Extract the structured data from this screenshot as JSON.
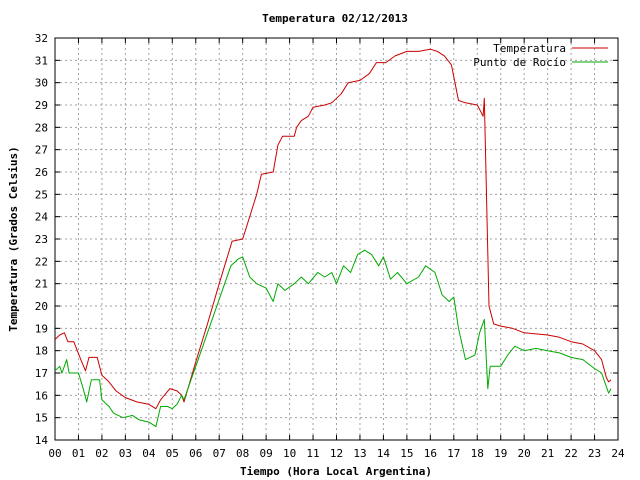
{
  "chart_data": {
    "type": "line",
    "title": "Temperatura 02/12/2013",
    "xlabel": "Tiempo (Hora Local Argentina)",
    "ylabel": "Temperatura (Grados Celsius)",
    "xlim": [
      0,
      24
    ],
    "ylim": [
      14,
      32
    ],
    "grid": true,
    "legend_position": "top-right",
    "x_tick_labels": [
      "00",
      "01",
      "02",
      "03",
      "04",
      "05",
      "06",
      "07",
      "08",
      "09",
      "10",
      "11",
      "12",
      "13",
      "14",
      "15",
      "16",
      "17",
      "18",
      "19",
      "20",
      "21",
      "22",
      "23",
      "24"
    ],
    "y_tick_labels": [
      "14",
      "15",
      "16",
      "17",
      "18",
      "19",
      "20",
      "21",
      "22",
      "23",
      "24",
      "25",
      "26",
      "27",
      "28",
      "29",
      "30",
      "31",
      "32"
    ],
    "series": [
      {
        "name": "Temperatura",
        "color": "#cc0000",
        "points": [
          [
            0.0,
            18.5
          ],
          [
            0.2,
            18.7
          ],
          [
            0.4,
            18.8
          ],
          [
            0.55,
            18.4
          ],
          [
            0.8,
            18.4
          ],
          [
            1.1,
            17.6
          ],
          [
            1.3,
            17.1
          ],
          [
            1.45,
            17.7
          ],
          [
            1.8,
            17.7
          ],
          [
            2.0,
            16.9
          ],
          [
            2.3,
            16.6
          ],
          [
            2.6,
            16.2
          ],
          [
            3.0,
            15.9
          ],
          [
            3.5,
            15.7
          ],
          [
            4.0,
            15.6
          ],
          [
            4.3,
            15.4
          ],
          [
            4.5,
            15.8
          ],
          [
            4.9,
            16.3
          ],
          [
            5.2,
            16.2
          ],
          [
            5.4,
            16.0
          ],
          [
            5.5,
            15.7
          ],
          [
            6.0,
            17.5
          ],
          [
            6.5,
            19.2
          ],
          [
            7.0,
            21.0
          ],
          [
            7.55,
            22.9
          ],
          [
            8.0,
            23.0
          ],
          [
            8.3,
            24.0
          ],
          [
            8.6,
            25.0
          ],
          [
            8.8,
            25.9
          ],
          [
            9.3,
            26.0
          ],
          [
            9.5,
            27.2
          ],
          [
            9.7,
            27.6
          ],
          [
            10.2,
            27.6
          ],
          [
            10.3,
            28.0
          ],
          [
            10.5,
            28.3
          ],
          [
            10.8,
            28.5
          ],
          [
            11.0,
            28.9
          ],
          [
            11.5,
            29.0
          ],
          [
            11.8,
            29.1
          ],
          [
            12.2,
            29.5
          ],
          [
            12.5,
            30.0
          ],
          [
            13.0,
            30.1
          ],
          [
            13.4,
            30.4
          ],
          [
            13.7,
            30.9
          ],
          [
            14.1,
            30.9
          ],
          [
            14.5,
            31.2
          ],
          [
            15.0,
            31.4
          ],
          [
            15.5,
            31.4
          ],
          [
            16.0,
            31.5
          ],
          [
            16.3,
            31.4
          ],
          [
            16.6,
            31.2
          ],
          [
            16.9,
            30.8
          ],
          [
            17.2,
            29.2
          ],
          [
            17.5,
            29.1
          ],
          [
            18.0,
            29.0
          ],
          [
            18.25,
            28.5
          ],
          [
            18.3,
            29.3
          ],
          [
            18.5,
            20.0
          ],
          [
            18.7,
            19.2
          ],
          [
            19.0,
            19.1
          ],
          [
            19.5,
            19.0
          ],
          [
            20.0,
            18.8
          ],
          [
            21.0,
            18.7
          ],
          [
            21.5,
            18.6
          ],
          [
            22.0,
            18.4
          ],
          [
            22.5,
            18.3
          ],
          [
            23.0,
            18.0
          ],
          [
            23.3,
            17.6
          ],
          [
            23.5,
            16.8
          ],
          [
            23.6,
            16.6
          ],
          [
            23.7,
            16.7
          ]
        ]
      },
      {
        "name": "Punto de Rocío",
        "color": "#00aa00",
        "points": [
          [
            0.0,
            17.1
          ],
          [
            0.2,
            17.3
          ],
          [
            0.3,
            17.0
          ],
          [
            0.5,
            17.6
          ],
          [
            0.6,
            17.0
          ],
          [
            1.0,
            17.0
          ],
          [
            1.2,
            16.3
          ],
          [
            1.35,
            15.7
          ],
          [
            1.55,
            16.7
          ],
          [
            1.9,
            16.7
          ],
          [
            2.0,
            15.8
          ],
          [
            2.3,
            15.5
          ],
          [
            2.5,
            15.2
          ],
          [
            2.9,
            15.0
          ],
          [
            3.3,
            15.1
          ],
          [
            3.6,
            14.9
          ],
          [
            4.0,
            14.8
          ],
          [
            4.3,
            14.6
          ],
          [
            4.5,
            15.5
          ],
          [
            4.8,
            15.5
          ],
          [
            5.0,
            15.4
          ],
          [
            5.2,
            15.6
          ],
          [
            5.4,
            16.0
          ],
          [
            5.5,
            15.8
          ],
          [
            6.0,
            17.3
          ],
          [
            6.5,
            18.8
          ],
          [
            7.0,
            20.3
          ],
          [
            7.5,
            21.8
          ],
          [
            7.8,
            22.1
          ],
          [
            8.0,
            22.2
          ],
          [
            8.3,
            21.3
          ],
          [
            8.6,
            21.0
          ],
          [
            9.0,
            20.8
          ],
          [
            9.3,
            20.2
          ],
          [
            9.5,
            21.0
          ],
          [
            9.8,
            20.7
          ],
          [
            10.2,
            21.0
          ],
          [
            10.5,
            21.3
          ],
          [
            10.8,
            21.0
          ],
          [
            11.2,
            21.5
          ],
          [
            11.5,
            21.3
          ],
          [
            11.8,
            21.5
          ],
          [
            12.0,
            21.0
          ],
          [
            12.3,
            21.8
          ],
          [
            12.6,
            21.5
          ],
          [
            12.9,
            22.3
          ],
          [
            13.2,
            22.5
          ],
          [
            13.5,
            22.3
          ],
          [
            13.8,
            21.8
          ],
          [
            14.0,
            22.2
          ],
          [
            14.3,
            21.2
          ],
          [
            14.6,
            21.5
          ],
          [
            15.0,
            21.0
          ],
          [
            15.5,
            21.3
          ],
          [
            15.8,
            21.8
          ],
          [
            16.2,
            21.5
          ],
          [
            16.5,
            20.5
          ],
          [
            16.8,
            20.2
          ],
          [
            17.0,
            20.4
          ],
          [
            17.2,
            19.0
          ],
          [
            17.5,
            17.6
          ],
          [
            17.9,
            17.8
          ],
          [
            18.1,
            18.8
          ],
          [
            18.3,
            19.4
          ],
          [
            18.45,
            16.3
          ],
          [
            18.55,
            17.3
          ],
          [
            19.0,
            17.3
          ],
          [
            19.3,
            17.8
          ],
          [
            19.6,
            18.2
          ],
          [
            20.0,
            18.0
          ],
          [
            20.5,
            18.1
          ],
          [
            21.0,
            18.0
          ],
          [
            21.5,
            17.9
          ],
          [
            22.0,
            17.7
          ],
          [
            22.5,
            17.6
          ],
          [
            23.0,
            17.2
          ],
          [
            23.3,
            17.0
          ],
          [
            23.5,
            16.4
          ],
          [
            23.6,
            16.1
          ],
          [
            23.7,
            16.3
          ]
        ]
      }
    ]
  }
}
